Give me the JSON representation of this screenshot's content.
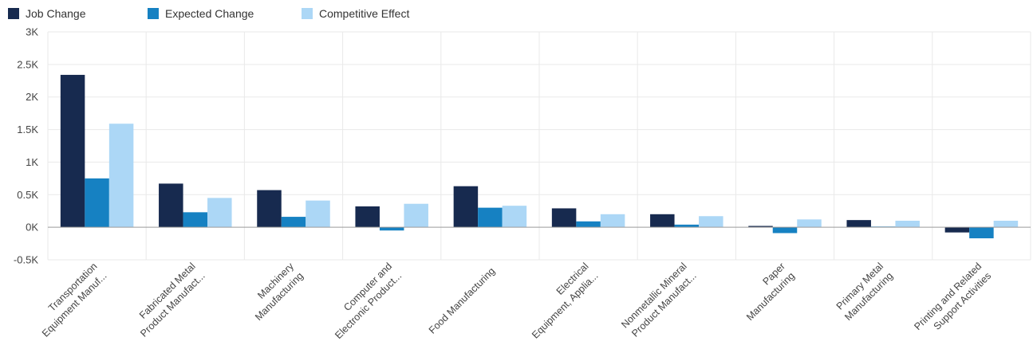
{
  "chart_data": {
    "type": "bar",
    "categories": [
      [
        "Transportation",
        "Equipment Manuf..."
      ],
      [
        "Fabricated Metal",
        "Product Manufact..."
      ],
      [
        "Machinery",
        "Manufacturing"
      ],
      [
        "Computer and",
        "Electronic Product..."
      ],
      [
        "Food Manufacturing"
      ],
      [
        "Electrical",
        "Equipment, Applia..."
      ],
      [
        "Nonmetallic Mineral",
        "Product Manufact..."
      ],
      [
        "Paper",
        "Manufacturing"
      ],
      [
        "Primary Metal",
        "Manufacturing"
      ],
      [
        "Printing and Related",
        "Support Activities"
      ]
    ],
    "series": [
      {
        "name": "Job Change",
        "color": "#172a4f",
        "values": [
          2340,
          670,
          570,
          320,
          630,
          290,
          200,
          20,
          110,
          -80
        ]
      },
      {
        "name": "Expected Change",
        "color": "#1681c2",
        "values": [
          750,
          230,
          160,
          -50,
          300,
          90,
          40,
          -90,
          10,
          -170
        ]
      },
      {
        "name": "Competitive Effect",
        "color": "#acd7f6",
        "values": [
          1590,
          450,
          410,
          360,
          330,
          200,
          170,
          120,
          100,
          100
        ]
      }
    ],
    "yticks": [
      {
        "value": 3000,
        "label": "3K"
      },
      {
        "value": 2500,
        "label": "2.5K"
      },
      {
        "value": 2000,
        "label": "2K"
      },
      {
        "value": 1500,
        "label": "1.5K"
      },
      {
        "value": 1000,
        "label": "1K"
      },
      {
        "value": 500,
        "label": "0.5K"
      },
      {
        "value": 0,
        "label": "0K"
      },
      {
        "value": -500,
        "label": "-0.5K"
      }
    ],
    "ylim": [
      -500,
      3000
    ],
    "grid": true,
    "legend": "top-left"
  }
}
